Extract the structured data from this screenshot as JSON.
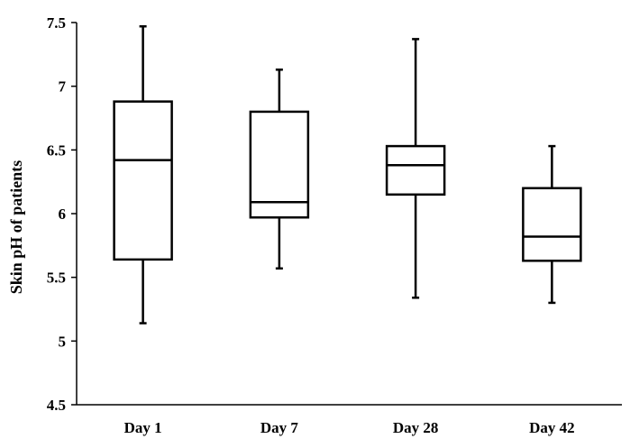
{
  "chart_data": {
    "type": "box",
    "title": "",
    "xlabel": "",
    "ylabel": "Skin pH of patients",
    "ylim": [
      4.5,
      7.5
    ],
    "yticks": [
      "4.5",
      "5",
      "5.5",
      "6",
      "6.5",
      "7",
      "7.5"
    ],
    "ytick_values": [
      4.5,
      5,
      5.5,
      6,
      6.5,
      7,
      7.5
    ],
    "grid": false,
    "legend": "none",
    "categories": [
      "Day 1",
      "Day 7",
      "Day 28",
      "Day 42"
    ],
    "boxes": [
      {
        "category": "Day 1",
        "min": 5.14,
        "q1": 5.64,
        "median": 6.42,
        "q3": 6.88,
        "max": 7.47
      },
      {
        "category": "Day 7",
        "min": 5.57,
        "q1": 5.97,
        "median": 6.09,
        "q3": 6.8,
        "max": 7.13
      },
      {
        "category": "Day 28",
        "min": 5.34,
        "q1": 6.15,
        "median": 6.38,
        "q3": 6.53,
        "max": 7.37
      },
      {
        "category": "Day 42",
        "min": 5.3,
        "q1": 5.63,
        "median": 5.82,
        "q3": 6.2,
        "max": 6.53
      }
    ]
  }
}
